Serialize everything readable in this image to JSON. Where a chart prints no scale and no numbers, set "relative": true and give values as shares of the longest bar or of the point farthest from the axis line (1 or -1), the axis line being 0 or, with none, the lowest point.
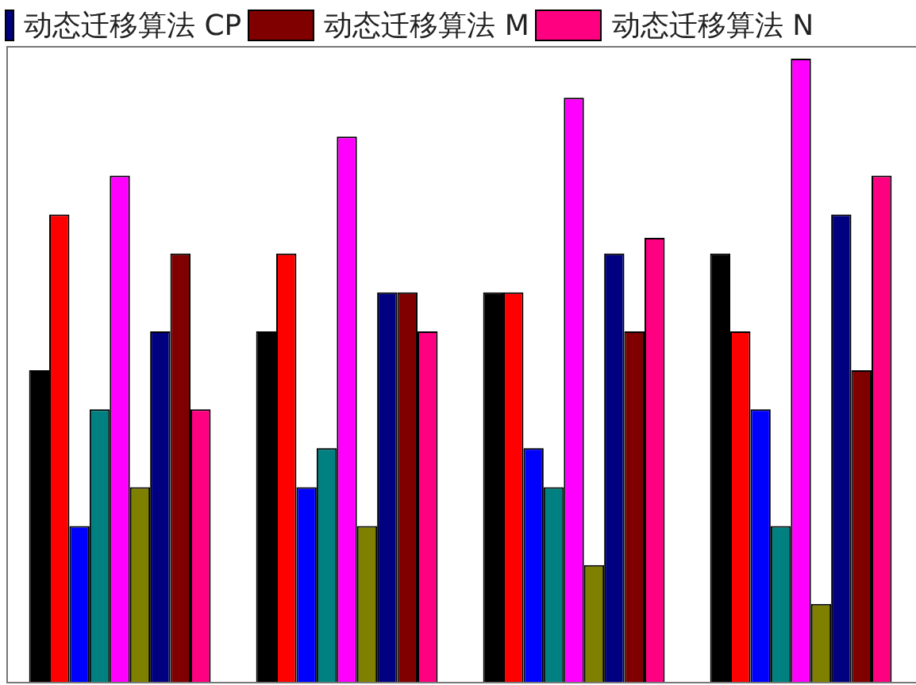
{
  "chart_data": {
    "type": "bar",
    "relative": true,
    "legend": "top",
    "categories": [
      null,
      null,
      null,
      null
    ],
    "series": [
      {
        "color": "#000000",
        "values": [
          0.5,
          0.5625,
          0.625,
          0.6875
        ]
      },
      {
        "color": "#ff0000",
        "values": [
          0.75,
          0.6875,
          0.625,
          0.5625
        ]
      },
      {
        "color": "#0000ff",
        "values": [
          0.25,
          0.3125,
          0.375,
          0.4375
        ]
      },
      {
        "color": "#008080",
        "values": [
          0.4375,
          0.375,
          0.3125,
          0.25
        ]
      },
      {
        "color": "#ff00ff",
        "values": [
          0.8125,
          0.875,
          0.9375,
          1
        ]
      },
      {
        "color": "#808000",
        "values": [
          0.3125,
          0.25,
          0.1875,
          0.125
        ]
      },
      {
        "name": "动态迁移算法 CP",
        "color": "#000080",
        "values": [
          0.5625,
          0.625,
          0.6875,
          0.75
        ]
      },
      {
        "name": "动态迁移算法 M",
        "color": "#800000",
        "values": [
          0.6875,
          0.625,
          0.5625,
          0.5
        ]
      },
      {
        "name": "动态迁移算法 N",
        "color": "#ff0080",
        "values": [
          0.4375,
          0.5625,
          0.7125,
          0.8125
        ]
      }
    ]
  }
}
